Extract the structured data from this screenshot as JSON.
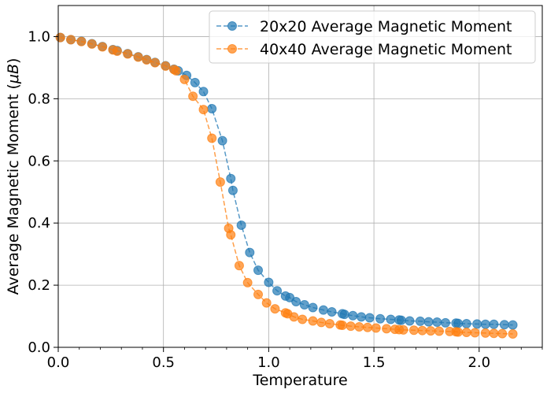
{
  "chart_data": {
    "type": "line",
    "xlabel": "Temperature",
    "ylabel": "Average Magnetic Moment (",
    "ylabel_unit": "μB",
    "ylabel_close": ")",
    "xlim": [
      0,
      2.3
    ],
    "ylim": [
      0,
      1.1
    ],
    "xticks": [
      0.0,
      0.5,
      1.0,
      1.5,
      2.0
    ],
    "xtick_labels": [
      "0.0",
      "0.5",
      "1.0",
      "1.5",
      "2.0"
    ],
    "xminor_step": 0.1,
    "yticks": [
      0.0,
      0.2,
      0.4,
      0.6,
      0.8,
      1.0
    ],
    "ytick_labels": [
      "0.0",
      "0.2",
      "0.4",
      "0.6",
      "0.8",
      "1.0"
    ],
    "grid": true,
    "legend_position": "top-right",
    "series": [
      {
        "name": "20x20 Average Magnetic Moment",
        "color": "#1f77b4",
        "x": [
          0.01,
          0.06,
          0.11,
          0.16,
          0.21,
          0.26,
          0.28,
          0.33,
          0.38,
          0.42,
          0.46,
          0.51,
          0.55,
          0.57,
          0.61,
          0.65,
          0.69,
          0.73,
          0.78,
          0.82,
          0.83,
          0.87,
          0.91,
          0.95,
          1.0,
          1.04,
          1.08,
          1.1,
          1.13,
          1.17,
          1.21,
          1.26,
          1.3,
          1.35,
          1.36,
          1.4,
          1.44,
          1.48,
          1.53,
          1.58,
          1.62,
          1.63,
          1.67,
          1.72,
          1.76,
          1.8,
          1.84,
          1.89,
          1.9,
          1.94,
          1.99,
          2.03,
          2.07,
          2.12,
          2.16
        ],
        "y": [
          0.997,
          0.99,
          0.985,
          0.977,
          0.968,
          0.958,
          0.955,
          0.945,
          0.935,
          0.926,
          0.917,
          0.906,
          0.895,
          0.89,
          0.875,
          0.852,
          0.823,
          0.768,
          0.665,
          0.543,
          0.505,
          0.393,
          0.305,
          0.248,
          0.209,
          0.182,
          0.165,
          0.16,
          0.147,
          0.137,
          0.128,
          0.12,
          0.114,
          0.108,
          0.106,
          0.102,
          0.098,
          0.095,
          0.092,
          0.09,
          0.088,
          0.087,
          0.085,
          0.084,
          0.082,
          0.081,
          0.079,
          0.078,
          0.077,
          0.076,
          0.075,
          0.074,
          0.074,
          0.073,
          0.072
        ]
      },
      {
        "name": "40x40 Average Magnetic Moment",
        "color": "#ff7f0e",
        "x": [
          0.01,
          0.06,
          0.11,
          0.16,
          0.21,
          0.26,
          0.28,
          0.33,
          0.38,
          0.42,
          0.46,
          0.51,
          0.55,
          0.56,
          0.6,
          0.64,
          0.69,
          0.73,
          0.77,
          0.81,
          0.82,
          0.86,
          0.9,
          0.95,
          0.99,
          1.03,
          1.08,
          1.09,
          1.12,
          1.16,
          1.21,
          1.25,
          1.29,
          1.34,
          1.35,
          1.39,
          1.43,
          1.47,
          1.51,
          1.56,
          1.6,
          1.62,
          1.64,
          1.69,
          1.73,
          1.77,
          1.81,
          1.86,
          1.89,
          1.9,
          1.94,
          1.98,
          2.03,
          2.07,
          2.11,
          2.16
        ],
        "y": [
          0.997,
          0.99,
          0.984,
          0.976,
          0.967,
          0.957,
          0.953,
          0.944,
          0.934,
          0.925,
          0.916,
          0.905,
          0.894,
          0.89,
          0.862,
          0.808,
          0.765,
          0.673,
          0.532,
          0.383,
          0.362,
          0.263,
          0.208,
          0.17,
          0.143,
          0.124,
          0.111,
          0.108,
          0.098,
          0.09,
          0.085,
          0.08,
          0.076,
          0.072,
          0.071,
          0.068,
          0.066,
          0.064,
          0.062,
          0.06,
          0.058,
          0.057,
          0.056,
          0.055,
          0.054,
          0.053,
          0.052,
          0.051,
          0.05,
          0.049,
          0.048,
          0.047,
          0.046,
          0.045,
          0.044,
          0.043
        ]
      }
    ]
  }
}
